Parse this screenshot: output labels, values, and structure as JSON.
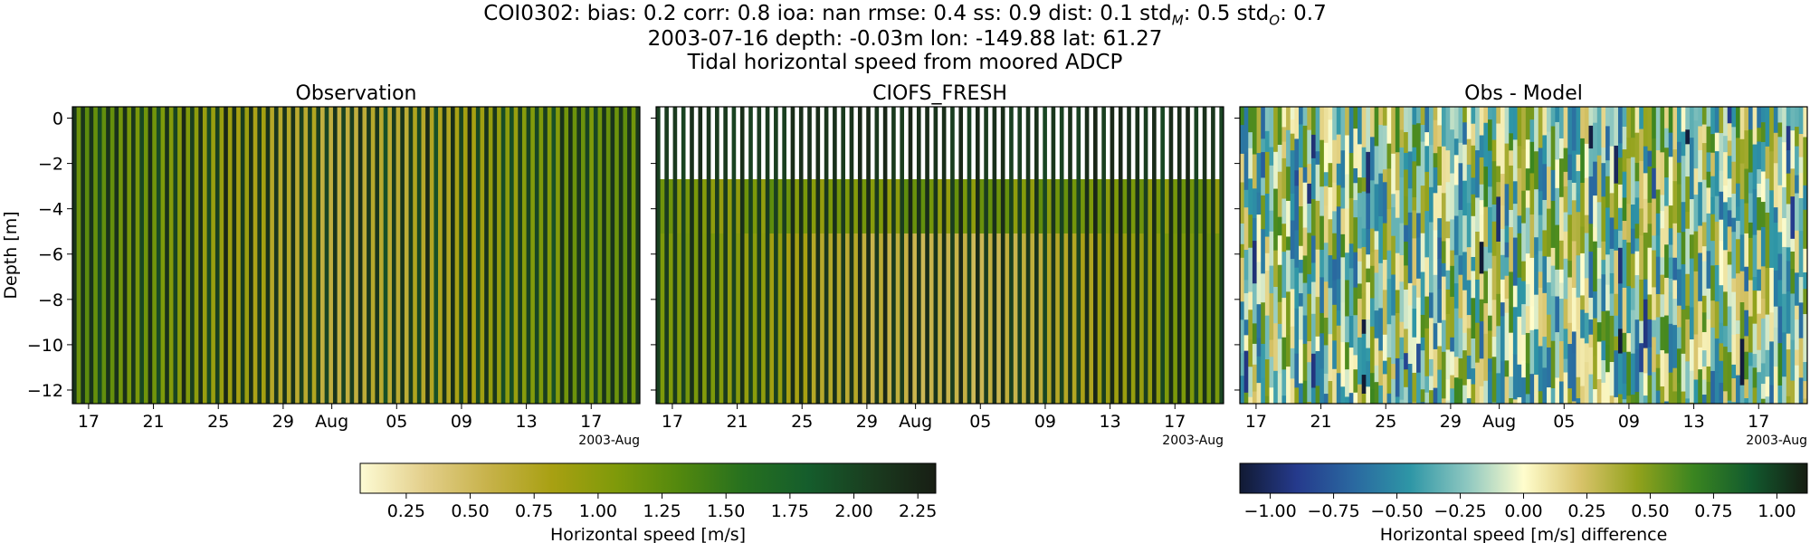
{
  "header": {
    "line1": "COI0302: bias: 0.2  corr: 0.8  ioa: nan  rmse: 0.4  ss: 0.9  dist: 0.1  std",
    "line1_sub_model": "M",
    "line1_mid": ": 0.5  std",
    "line1_sub_obs": "O",
    "line1_end": ": 0.7",
    "line2": "2003-07-16 depth: -0.03m lon: -149.88 lat: 61.27",
    "line3": "Tidal horizontal speed from moored ADCP"
  },
  "chart_data": [
    {
      "type": "heatmap",
      "title": "Observation",
      "ylabel": "Depth [m]",
      "ylim": [
        -12.6,
        0.5
      ],
      "yticks": [
        0,
        -2,
        -4,
        -6,
        -8,
        -10,
        -12
      ],
      "ytick_labels": [
        "0",
        "−2",
        "−4",
        "−6",
        "−8",
        "−10",
        "−12"
      ],
      "xlim": [
        "2003-07-16",
        "2003-08-20"
      ],
      "xticks": [
        "2003-07-17",
        "2003-07-21",
        "2003-07-25",
        "2003-07-29",
        "2003-08-01",
        "2003-08-05",
        "2003-08-09",
        "2003-08-13",
        "2003-08-17"
      ],
      "xtick_labels": [
        "17",
        "21",
        "25",
        "29",
        "Aug",
        "05",
        "09",
        "13",
        "17"
      ],
      "x_offset_label": "2003-Aug",
      "colormap": "speed",
      "clim": [
        0.07,
        2.32
      ]
    },
    {
      "type": "heatmap",
      "title": "CIOFS_FRESH",
      "ylim": [
        -12.6,
        0.5
      ],
      "xlim": [
        "2003-07-16",
        "2003-08-20"
      ],
      "xticks": [
        "2003-07-17",
        "2003-07-21",
        "2003-07-25",
        "2003-07-29",
        "2003-08-01",
        "2003-08-05",
        "2003-08-09",
        "2003-08-13",
        "2003-08-17"
      ],
      "xtick_labels": [
        "17",
        "21",
        "25",
        "29",
        "Aug",
        "05",
        "09",
        "13",
        "17"
      ],
      "x_offset_label": "2003-Aug",
      "colormap": "speed",
      "clim": [
        0.07,
        2.32
      ]
    },
    {
      "type": "heatmap",
      "title": "Obs - Model",
      "ylim": [
        -12.6,
        0.5
      ],
      "xlim": [
        "2003-07-16",
        "2003-08-20"
      ],
      "xticks": [
        "2003-07-17",
        "2003-07-21",
        "2003-07-25",
        "2003-07-29",
        "2003-08-01",
        "2003-08-05",
        "2003-08-09",
        "2003-08-13",
        "2003-08-17"
      ],
      "xtick_labels": [
        "17",
        "21",
        "25",
        "29",
        "Aug",
        "05",
        "09",
        "13",
        "17"
      ],
      "x_offset_label": "2003-Aug",
      "colormap": "delta",
      "clim": [
        -1.12,
        1.12
      ]
    }
  ],
  "colorbars": [
    {
      "label": "Horizontal speed [m/s]",
      "range": [
        0.07,
        2.32
      ],
      "ticks": [
        0.25,
        0.5,
        0.75,
        1.0,
        1.25,
        1.5,
        1.75,
        2.0,
        2.25
      ],
      "tick_labels": [
        "0.25",
        "0.50",
        "0.75",
        "1.00",
        "1.25",
        "1.50",
        "1.75",
        "2.00",
        "2.25"
      ],
      "colors": [
        "#fdfbd4",
        "#e3cf8b",
        "#c7b24a",
        "#a8a012",
        "#7f9a0a",
        "#52880e",
        "#26701f",
        "#155d2c",
        "#1a3c1f",
        "#181e14"
      ]
    },
    {
      "label": "Horizontal speed [m/s] difference",
      "range": [
        -1.12,
        1.12
      ],
      "ticks": [
        -1.0,
        -0.75,
        -0.5,
        -0.25,
        0.0,
        0.25,
        0.5,
        0.75,
        1.0
      ],
      "tick_labels": [
        "−1.00",
        "−0.75",
        "−0.50",
        "−0.25",
        "0.00",
        "0.25",
        "0.50",
        "0.75",
        "1.00"
      ],
      "colors": [
        "#111a33",
        "#253a8c",
        "#2a68a0",
        "#2e96a6",
        "#8dc7c0",
        "#fffdcd",
        "#d8c36a",
        "#92a21c",
        "#3a8520",
        "#125a2e",
        "#161d12"
      ]
    }
  ]
}
